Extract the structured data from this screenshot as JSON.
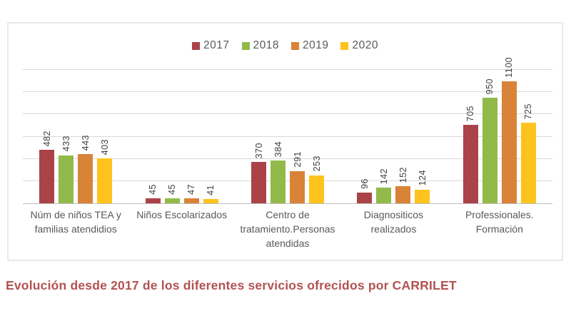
{
  "chart_data": {
    "type": "bar",
    "title": "Evolución desde 2017 de los diferentes servicios ofrecidos por CARRILET",
    "categories": [
      "Núm de niños TEA y familias atendidios",
      "Niños Escolarizados",
      "Centro de tratamiento.Personas atendidas",
      "Diagnositicos realizados",
      "Professionales. Formación"
    ],
    "series": [
      {
        "name": "2017",
        "color": "#aa4348",
        "values": [
          482,
          45,
          370,
          96,
          705
        ]
      },
      {
        "name": "2018",
        "color": "#92ba4b",
        "values": [
          433,
          45,
          384,
          142,
          950
        ]
      },
      {
        "name": "2019",
        "color": "#d98339",
        "values": [
          443,
          47,
          291,
          152,
          1100
        ]
      },
      {
        "name": "2020",
        "color": "#ffc31d",
        "values": [
          403,
          41,
          253,
          124,
          725
        ]
      }
    ],
    "ylim": [
      0,
      1200
    ],
    "grid_step": 200,
    "gridlines": true,
    "y_axis_labels_visible": false,
    "legend_position": "top",
    "data_labels": "rotated-vertical-above-bars"
  },
  "styles": {
    "title_color": "#b25251",
    "value_label_color": "#3f3f3f",
    "category_label_color": "#595959",
    "legend_text_color": "#595959",
    "gridline_color": "#d9d9d9",
    "axis_line_color": "#bfbfbf",
    "chart_border_color": "#e9e9e9",
    "background": "#ffffff"
  }
}
